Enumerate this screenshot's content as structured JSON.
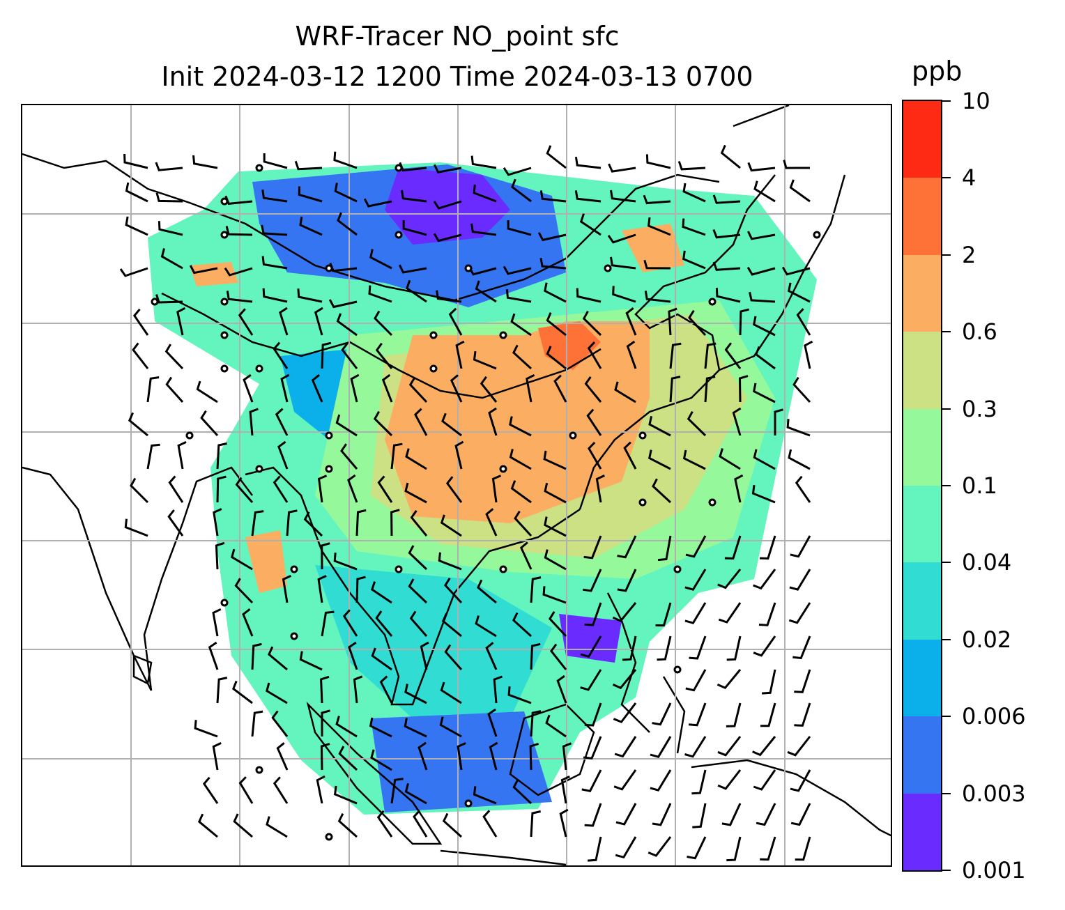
{
  "title": {
    "line1": "WRF-Tracer NO_point sfc",
    "line2": "Init 2024-03-12 1200 Time 2024-03-13 0700"
  },
  "colorbar": {
    "unit": "ppb",
    "levels": [
      "0.001",
      "0.003",
      "0.006",
      "0.02",
      "0.04",
      "0.1",
      "0.3",
      "0.6",
      "2",
      "4",
      "10"
    ],
    "colors": [
      "#6a2bff",
      "#3575f2",
      "#0bb0ea",
      "#31dcd2",
      "#63f5bd",
      "#95f89a",
      "#cbe184",
      "#fbae62",
      "#ff7237",
      "#ff2a14"
    ]
  },
  "map": {
    "gridlines": true,
    "coastline_color": "#000000",
    "grid_color": "#b0b0b0"
  }
}
